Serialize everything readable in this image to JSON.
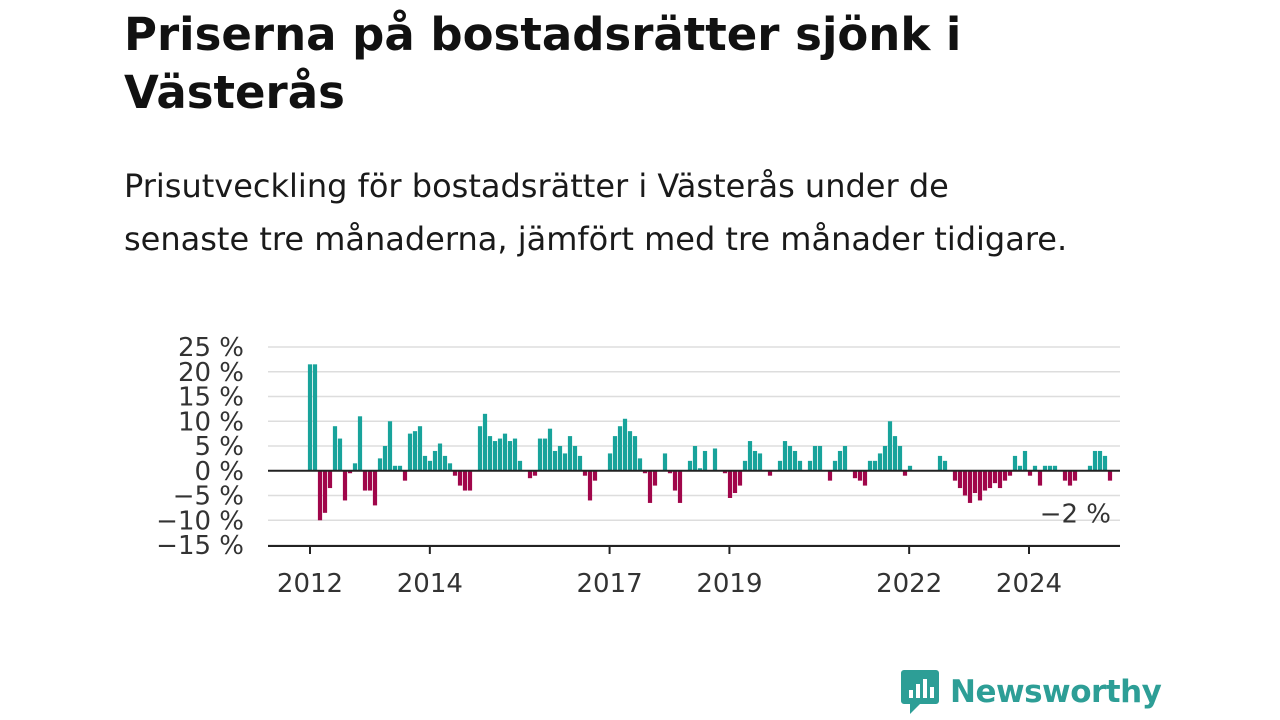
{
  "title": "Priserna på bostadsrätter sjönk i Västerås",
  "subtitle": "Prisutveckling för bostadsrätter i Västerås under de senaste tre månaderna, jämfört med tre månader tidigare.",
  "brand": {
    "name": "Newsworthy",
    "color": "#2d9e96"
  },
  "colors": {
    "positive": "#18a39b",
    "negative": "#a0064a",
    "grid": "#dddddd",
    "axis": "#222222"
  },
  "chart_data": {
    "type": "bar",
    "value_format": "percent",
    "ylim": [
      -15,
      25
    ],
    "yticks": [
      25,
      20,
      15,
      10,
      5,
      0,
      -5,
      -10,
      -15
    ],
    "ytick_labels": [
      "25 %",
      "20 %",
      "15 %",
      "10 %",
      "5 %",
      "0 %",
      "−5 %",
      "−10 %",
      "−15 %"
    ],
    "xlim": [
      2011.85,
      2025.4
    ],
    "xticks": [
      2012,
      2014,
      2017,
      2019,
      2022,
      2024
    ],
    "xtick_labels": [
      "2012",
      "2014",
      "2017",
      "2019",
      "2022",
      "2024"
    ],
    "grid": true,
    "start": 2012.0,
    "step_years": 0.0833,
    "values": [
      21.5,
      21.5,
      -10,
      -8.5,
      -3.5,
      9,
      6.5,
      -6,
      -0.5,
      1.5,
      11,
      -4,
      -4,
      -7,
      2.5,
      5,
      10,
      1,
      1,
      -2,
      7.5,
      8,
      9,
      3,
      2,
      4,
      5.5,
      3,
      1.5,
      -1,
      -3,
      -4,
      -4,
      0,
      9,
      11.5,
      7,
      6,
      6.5,
      7.5,
      6,
      6.5,
      2,
      0,
      -1.5,
      -1,
      6.5,
      6.5,
      8.5,
      4,
      5,
      3.5,
      7,
      5,
      3,
      -1,
      -6,
      -2,
      0,
      0,
      3.5,
      7,
      9,
      10.5,
      8,
      7,
      2.5,
      -0.5,
      -6.5,
      -3,
      0,
      3.5,
      -0.5,
      -4,
      -6.5,
      0,
      2,
      5,
      0.5,
      4,
      0,
      4.5,
      0,
      -0.5,
      -5.5,
      -4.5,
      -3,
      2,
      6,
      4,
      3.5,
      0,
      -1,
      0,
      2,
      6,
      5,
      4,
      2,
      0,
      2,
      5,
      5,
      0,
      -2,
      2,
      4,
      5,
      0,
      -1.5,
      -2,
      -3,
      2,
      2,
      3.5,
      5,
      10,
      7,
      5,
      -1,
      1,
      0,
      0,
      0,
      0,
      0,
      3,
      2,
      0,
      -2,
      -3.5,
      -5,
      -6.5,
      -4.5,
      -6,
      -4,
      -3.5,
      -2.5,
      -3.5,
      -2,
      -1,
      3,
      1,
      4,
      -1,
      1,
      -3,
      1,
      1,
      1,
      0,
      -2,
      -3,
      -2,
      0,
      0,
      1,
      4,
      4,
      3,
      -2
    ],
    "annotations": [
      {
        "text": "−2 %",
        "x": 2025.2,
        "y": -2
      }
    ]
  }
}
